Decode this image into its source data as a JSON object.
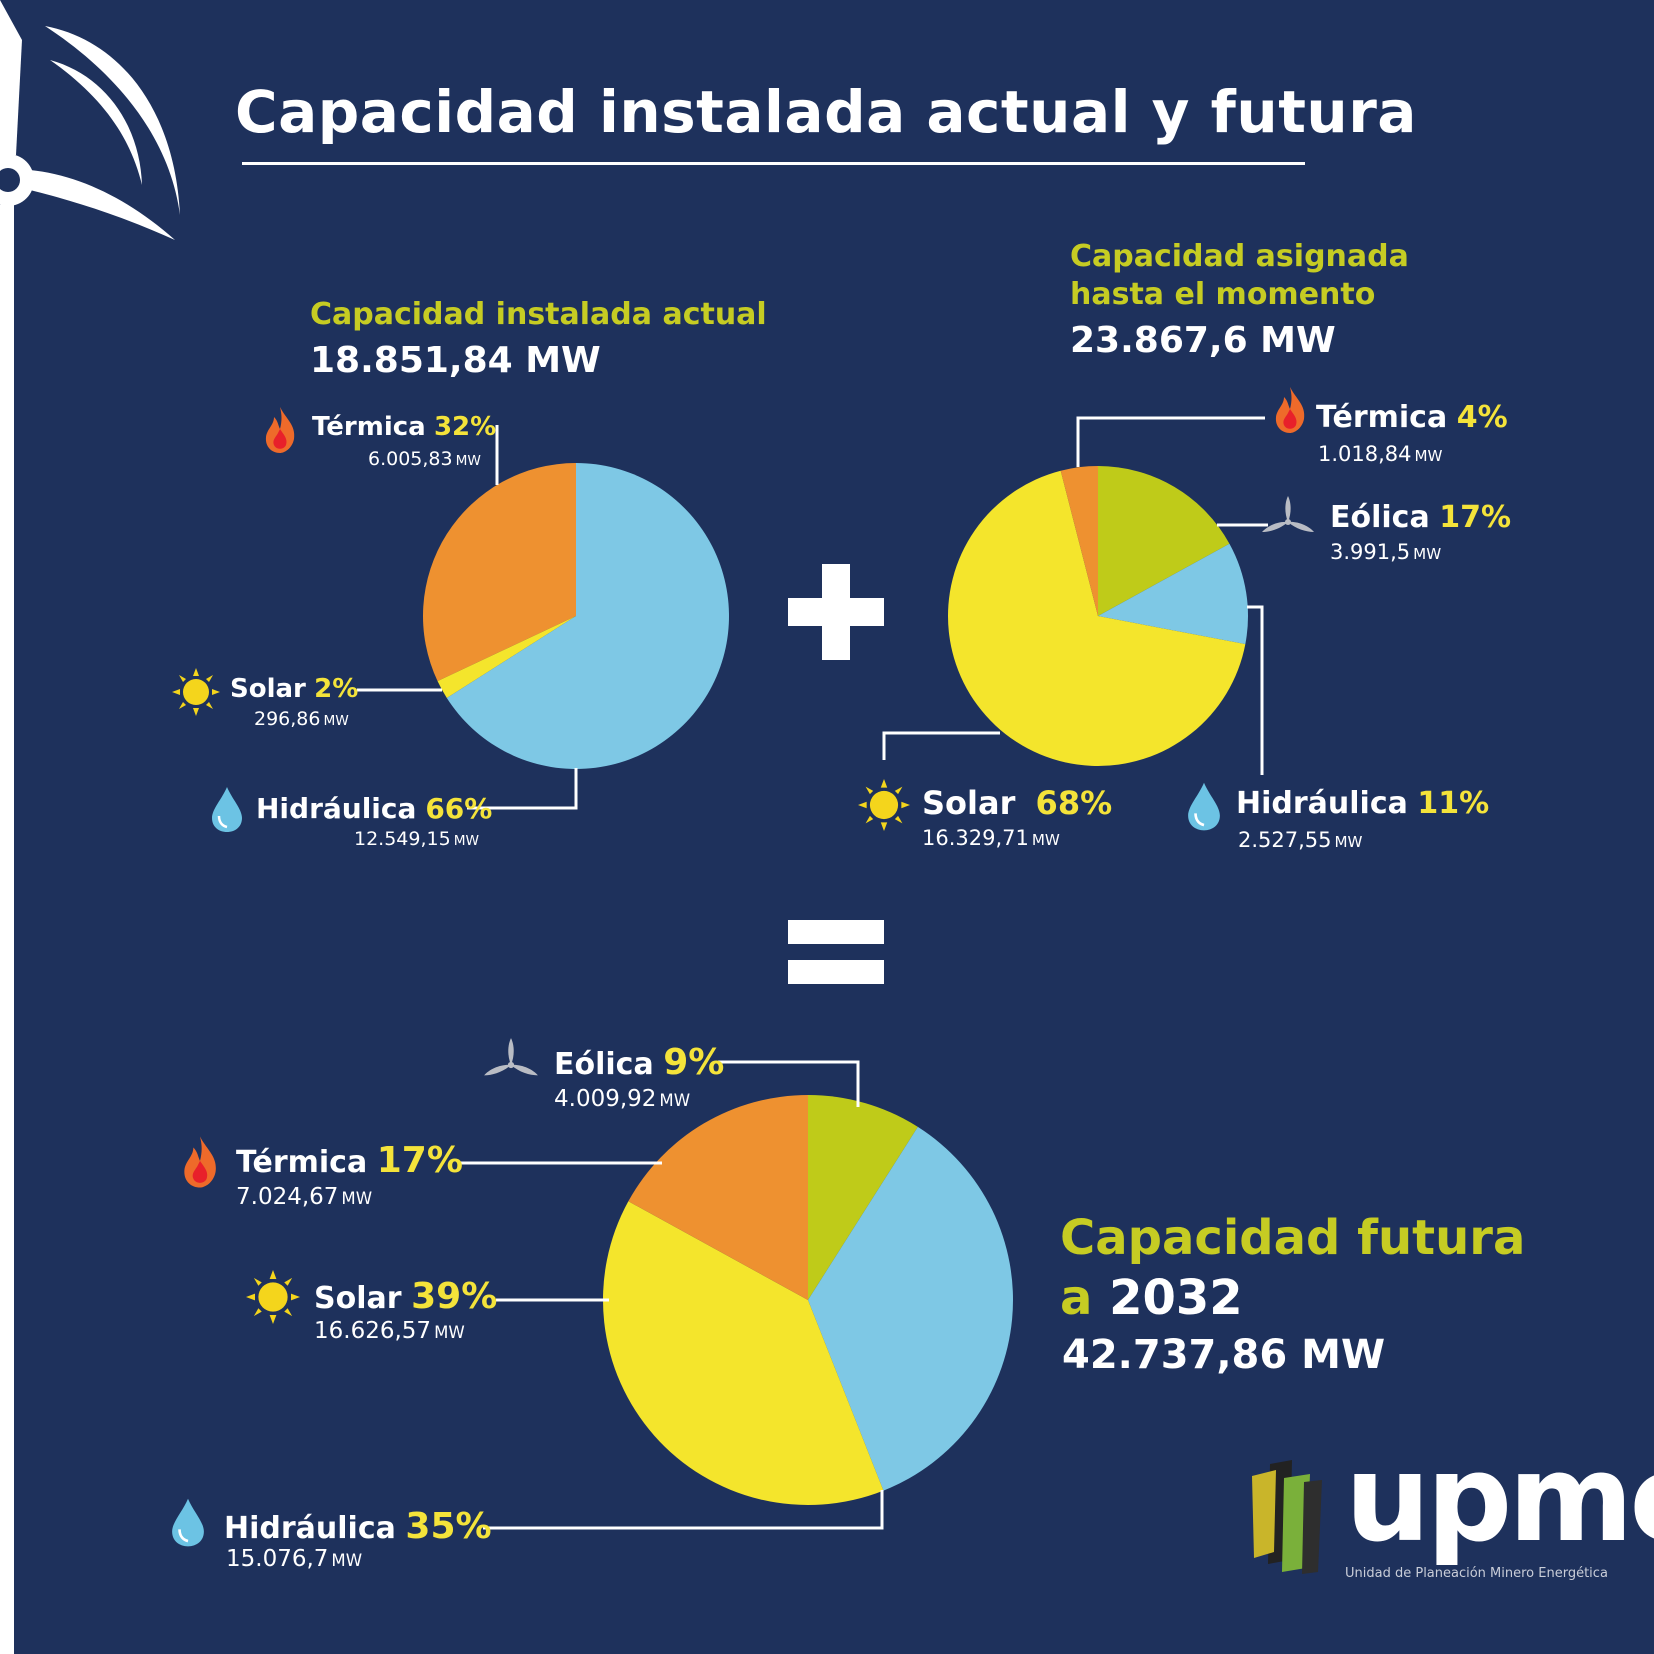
{
  "title": "Capacidad instalada actual y futura",
  "current": {
    "heading": "Capacidad instalada actual",
    "total": "18.851,84 MW",
    "labels": [
      {
        "name": "Térmica",
        "pct": "32%",
        "mw": "6.005,83",
        "unit": "MW"
      },
      {
        "name": "Solar",
        "pct": "2%",
        "mw": "296,86",
        "unit": "MW"
      },
      {
        "name": "Hidráulica",
        "pct": "66%",
        "mw": "12.549,15",
        "unit": "MW"
      }
    ]
  },
  "assigned": {
    "heading_line1": "Capacidad asignada",
    "heading_line2": "hasta el momento",
    "total": "23.867,6 MW",
    "labels": [
      {
        "name": "Térmica",
        "pct": "4%",
        "mw": "1.018,84",
        "unit": "MW"
      },
      {
        "name": "Eólica",
        "pct": "17%",
        "mw": "3.991,5",
        "unit": "MW"
      },
      {
        "name": "Solar",
        "pct": "68%",
        "mw": "16.329,71",
        "unit": "MW"
      },
      {
        "name": "Hidráulica",
        "pct": "11%",
        "mw": "2.527,55",
        "unit": "MW"
      }
    ]
  },
  "future": {
    "heading_line1": "Capacidad futura",
    "heading_prefix": "a",
    "heading_year": "2032",
    "total": "42.737,86 MW",
    "labels": [
      {
        "name": "Eólica",
        "pct": "9%",
        "mw": "4.009,92",
        "unit": "MW"
      },
      {
        "name": "Térmica",
        "pct": "17%",
        "mw": "7.024,67",
        "unit": "MW"
      },
      {
        "name": "Solar",
        "pct": "39%",
        "mw": "16.626,57",
        "unit": "MW"
      },
      {
        "name": "Hidráulica",
        "pct": "35%",
        "mw": "15.076,7",
        "unit": "MW"
      }
    ]
  },
  "logo": {
    "text": "upme",
    "subtitle": "Unidad de Planeación Minero Energética"
  },
  "colors": {
    "background": "#1e315c",
    "termica": "#ee9130",
    "solar": "#f4e52c",
    "hidraulica": "#7ec8e5",
    "eolica": "#bfcb19",
    "heading": "#c6cc23",
    "percent": "#f4e33a"
  },
  "chart_data": [
    {
      "type": "pie",
      "title": "Capacidad instalada actual",
      "total": "18.851,84 MW",
      "slices": [
        {
          "label": "Térmica",
          "value": 32,
          "mw": 6005.83
        },
        {
          "label": "Solar",
          "value": 2,
          "mw": 296.86
        },
        {
          "label": "Hidráulica",
          "value": 66,
          "mw": 12549.15
        }
      ]
    },
    {
      "type": "pie",
      "title": "Capacidad asignada hasta el momento",
      "total": "23.867,6 MW",
      "slices": [
        {
          "label": "Eólica",
          "value": 17,
          "mw": 3991.5
        },
        {
          "label": "Hidráulica",
          "value": 11,
          "mw": 2527.55
        },
        {
          "label": "Solar",
          "value": 68,
          "mw": 16329.71
        },
        {
          "label": "Térmica",
          "value": 4,
          "mw": 1018.84
        }
      ]
    },
    {
      "type": "pie",
      "title": "Capacidad futura a 2032",
      "total": "42.737,86 MW",
      "slices": [
        {
          "label": "Eólica",
          "value": 9,
          "mw": 4009.92
        },
        {
          "label": "Hidráulica",
          "value": 35,
          "mw": 15076.7
        },
        {
          "label": "Solar",
          "value": 39,
          "mw": 16626.57
        },
        {
          "label": "Térmica",
          "value": 17,
          "mw": 7024.67
        }
      ]
    }
  ]
}
